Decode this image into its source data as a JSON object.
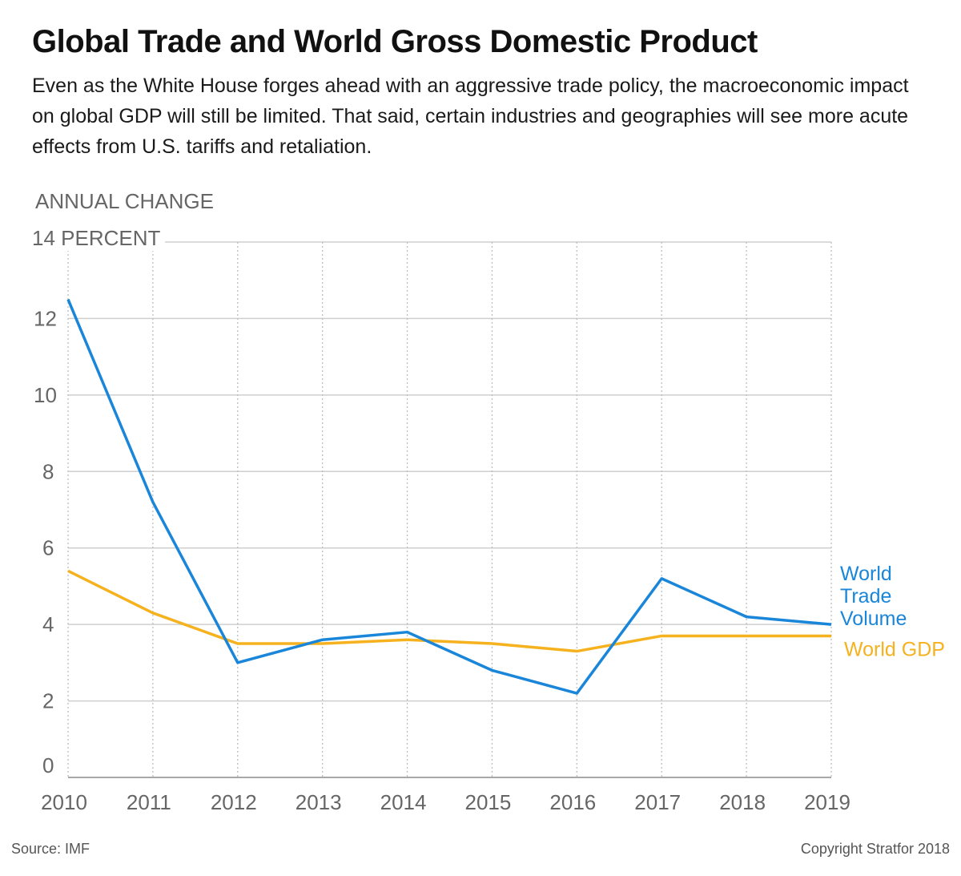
{
  "header": {
    "title": "Global Trade and World Gross Domestic Product",
    "subtitle": "Even as the White House forges ahead with an aggressive trade policy, the macroeconomic impact on global GDP will still be limited. That said, certain industries and geographies will see more acute effects from U.S. tariffs and retaliation."
  },
  "footer": {
    "source": "Source: IMF",
    "copyright": "Copyright Stratfor 2018"
  },
  "colors": {
    "trade": "#1a86d9",
    "gdp": "#f5b21e",
    "grid": "#cfcfcf",
    "axis_text": "#666666"
  },
  "chart_data": {
    "type": "line",
    "ylabel": "ANNUAL CHANGE",
    "yunit": "PERCENT",
    "ylim": [
      0,
      14
    ],
    "yticks": [
      0,
      2,
      4,
      6,
      8,
      10,
      12,
      14
    ],
    "x": [
      "2010",
      "2011",
      "2012",
      "2013",
      "2014",
      "2015",
      "2016",
      "2017",
      "2018",
      "2019"
    ],
    "grid": true,
    "series": [
      {
        "name": "World Trade Volume",
        "label_lines": [
          "World",
          "Trade",
          "Volume"
        ],
        "color": "#1a86d9",
        "values": [
          12.5,
          7.2,
          3.0,
          3.6,
          3.8,
          2.8,
          2.2,
          5.2,
          4.2,
          4.0
        ]
      },
      {
        "name": "World GDP",
        "label_lines": [
          "World GDP"
        ],
        "color": "#f5b21e",
        "values": [
          5.4,
          4.3,
          3.5,
          3.5,
          3.6,
          3.5,
          3.3,
          3.7,
          3.7,
          3.7
        ]
      }
    ]
  }
}
